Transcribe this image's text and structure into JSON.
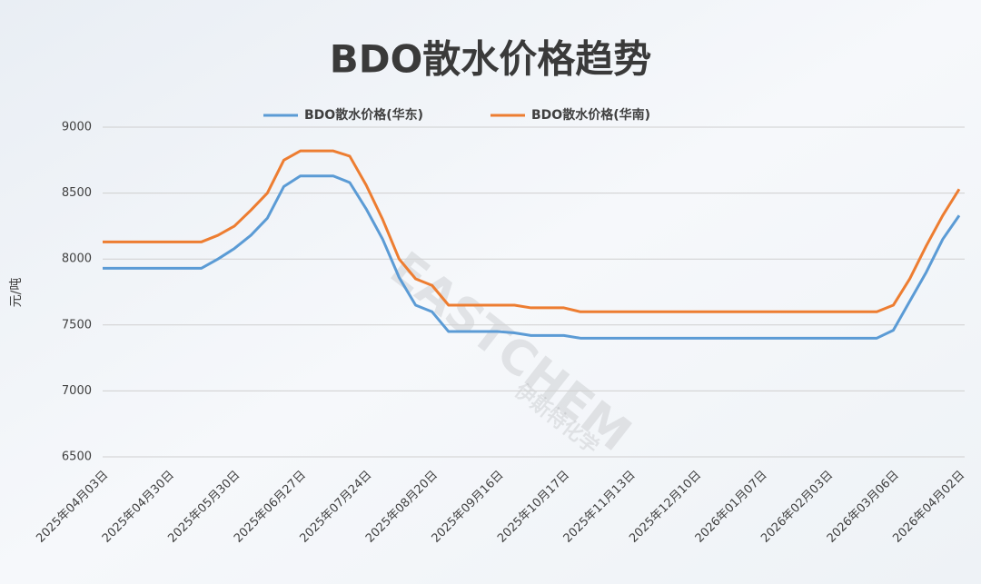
{
  "chart_data": {
    "type": "line",
    "title": "BDO散水价格趋势",
    "y_label": "元/吨",
    "watermark": [
      "EASTCHEM",
      "伊斯特化学"
    ],
    "categories": [
      "2025年04月03日",
      null,
      null,
      null,
      "2025年04月30日",
      null,
      null,
      null,
      "2025年05月30日",
      null,
      null,
      null,
      "2025年06月27日",
      null,
      null,
      null,
      "2025年07月24日",
      null,
      null,
      null,
      "2025年08月20日",
      null,
      null,
      null,
      "2025年09月16日",
      null,
      null,
      null,
      "2025年10月17日",
      null,
      null,
      null,
      "2025年11月13日",
      null,
      null,
      null,
      "2025年12月10日",
      null,
      null,
      null,
      "2026年01月07日",
      null,
      null,
      null,
      "2026年02月03日",
      null,
      null,
      null,
      "2026年03月06日",
      null,
      null,
      null,
      "2026年04月02日"
    ],
    "series": [
      {
        "name": "BDO散水价格(华东)",
        "color": "#5b9bd5",
        "values": [
          7930,
          7930,
          7930,
          7930,
          7930,
          7930,
          7930,
          8000,
          8080,
          8180,
          8310,
          8550,
          8630,
          8630,
          8630,
          8580,
          8380,
          8150,
          7860,
          7650,
          7600,
          7450,
          7450,
          7450,
          7450,
          7440,
          7420,
          7420,
          7420,
          7400,
          7400,
          7400,
          7400,
          7400,
          7400,
          7400,
          7400,
          7400,
          7400,
          7400,
          7400,
          7400,
          7400,
          7400,
          7400,
          7400,
          7400,
          7400,
          7460,
          7680,
          7900,
          8150,
          8330
        ]
      },
      {
        "name": "BDO散水价格(华南)",
        "color": "#ed7d31",
        "values": [
          8130,
          8130,
          8130,
          8130,
          8130,
          8130,
          8130,
          8180,
          8250,
          8370,
          8500,
          8750,
          8820,
          8820,
          8820,
          8780,
          8560,
          8300,
          8000,
          7850,
          7800,
          7650,
          7650,
          7650,
          7650,
          7650,
          7630,
          7630,
          7630,
          7600,
          7600,
          7600,
          7600,
          7600,
          7600,
          7600,
          7600,
          7600,
          7600,
          7600,
          7600,
          7600,
          7600,
          7600,
          7600,
          7600,
          7600,
          7600,
          7650,
          7850,
          8100,
          8330,
          8530
        ]
      }
    ],
    "ylim": [
      6500,
      9000
    ],
    "yticks": [
      6500,
      7000,
      7500,
      8000,
      8500,
      9000
    ],
    "grid": true,
    "legend": "top"
  }
}
